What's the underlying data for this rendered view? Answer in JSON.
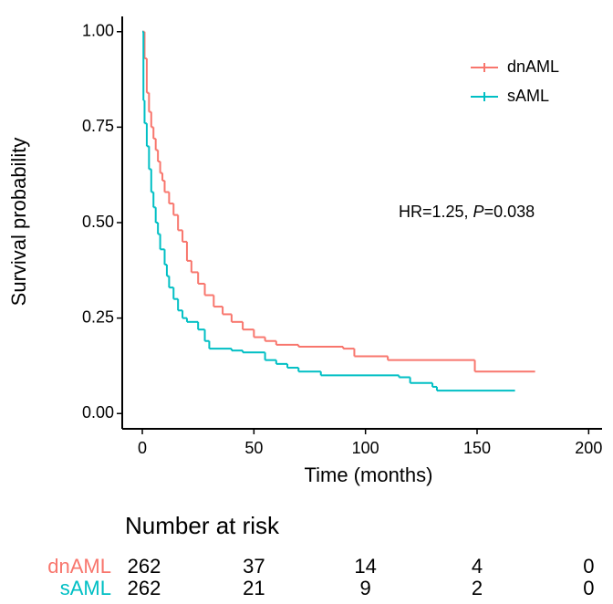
{
  "chart_data": {
    "type": "line",
    "step": true,
    "xlabel": "Time (months)",
    "ylabel": "Survival probability",
    "xlim": [
      -9,
      206
    ],
    "ylim": [
      -0.04,
      1.04
    ],
    "xticks": [
      0,
      50,
      100,
      150,
      200
    ],
    "yticks": [
      {
        "value": 0,
        "label": "0.00"
      },
      {
        "value": 0.25,
        "label": "0.25"
      },
      {
        "value": 0.5,
        "label": "0.50"
      },
      {
        "value": 0.75,
        "label": "0.75"
      },
      {
        "value": 1,
        "label": "1.00"
      }
    ],
    "legend": "upper right",
    "annotation": {
      "prefix": "HR=1.25, ",
      "italic": "P",
      "suffix": "=0.038"
    },
    "series": [
      {
        "name": "dnAML",
        "color": "#f8766d",
        "x": [
          0,
          1,
          2,
          3,
          4,
          5,
          6,
          7,
          8,
          9,
          10,
          12,
          14,
          16,
          18,
          20,
          22,
          25,
          28,
          32,
          36,
          40,
          45,
          50,
          55,
          60,
          70,
          90,
          95,
          110,
          149,
          176
        ],
        "values": [
          1,
          0.93,
          0.84,
          0.79,
          0.75,
          0.72,
          0.69,
          0.66,
          0.63,
          0.61,
          0.58,
          0.55,
          0.52,
          0.48,
          0.45,
          0.4,
          0.37,
          0.34,
          0.31,
          0.28,
          0.26,
          0.24,
          0.22,
          0.2,
          0.19,
          0.18,
          0.175,
          0.17,
          0.15,
          0.14,
          0.11,
          0.11
        ]
      },
      {
        "name": "sAML",
        "color": "#00bfc4",
        "x": [
          0,
          0.5,
          1,
          2,
          3,
          4,
          5,
          6,
          7,
          8,
          10,
          11,
          12,
          14,
          16,
          18,
          20,
          25,
          28,
          30,
          40,
          45,
          55,
          60,
          65,
          70,
          80,
          115,
          120,
          130,
          132,
          167
        ],
        "values": [
          1,
          0.82,
          0.76,
          0.7,
          0.64,
          0.58,
          0.54,
          0.5,
          0.47,
          0.43,
          0.39,
          0.36,
          0.33,
          0.3,
          0.27,
          0.25,
          0.24,
          0.22,
          0.19,
          0.17,
          0.165,
          0.16,
          0.14,
          0.13,
          0.12,
          0.11,
          0.1,
          0.095,
          0.08,
          0.07,
          0.06,
          0.06
        ]
      }
    ],
    "risk_table": {
      "title": "Number at risk",
      "rows": [
        {
          "name": "dnAML",
          "color": "#f8766d",
          "counts": [
            262,
            37,
            14,
            4,
            0
          ]
        },
        {
          "name": "sAML",
          "color": "#00bfc4",
          "counts": [
            262,
            21,
            9,
            2,
            0
          ]
        }
      ]
    }
  }
}
